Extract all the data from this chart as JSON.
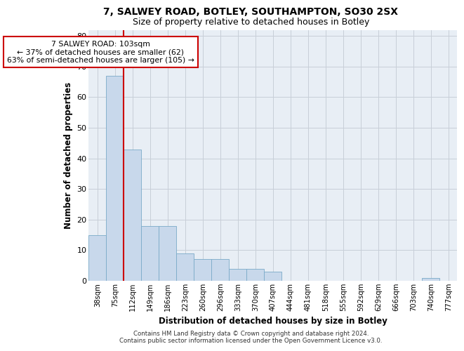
{
  "title_line1": "7, SALWEY ROAD, BOTLEY, SOUTHAMPTON, SO30 2SX",
  "title_line2": "Size of property relative to detached houses in Botley",
  "xlabel": "Distribution of detached houses by size in Botley",
  "ylabel": "Number of detached properties",
  "bar_labels": [
    "38sqm",
    "75sqm",
    "112sqm",
    "149sqm",
    "186sqm",
    "223sqm",
    "260sqm",
    "296sqm",
    "333sqm",
    "370sqm",
    "407sqm",
    "444sqm",
    "481sqm",
    "518sqm",
    "555sqm",
    "592sqm",
    "629sqm",
    "666sqm",
    "703sqm",
    "740sqm",
    "777sqm"
  ],
  "bar_values": [
    15,
    67,
    43,
    18,
    18,
    9,
    7,
    7,
    4,
    4,
    3,
    0,
    0,
    0,
    0,
    0,
    0,
    0,
    0,
    1,
    0
  ],
  "bar_color": "#c8d8eb",
  "bar_edge_color": "#7aaac8",
  "grid_color": "#c8cfd8",
  "annotation_text": "7 SALWEY ROAD: 103sqm\n← 37% of detached houses are smaller (62)\n63% of semi-detached houses are larger (105) →",
  "annotation_box_color": "white",
  "annotation_box_edge_color": "#cc0000",
  "vline_x_index": 1.5,
  "vline_color": "#cc0000",
  "ylim": [
    0,
    82
  ],
  "yticks": [
    0,
    10,
    20,
    30,
    40,
    50,
    60,
    70,
    80
  ],
  "footer_text": "Contains HM Land Registry data © Crown copyright and database right 2024.\nContains public sector information licensed under the Open Government Licence v3.0.",
  "background_color": "#e8eef5"
}
